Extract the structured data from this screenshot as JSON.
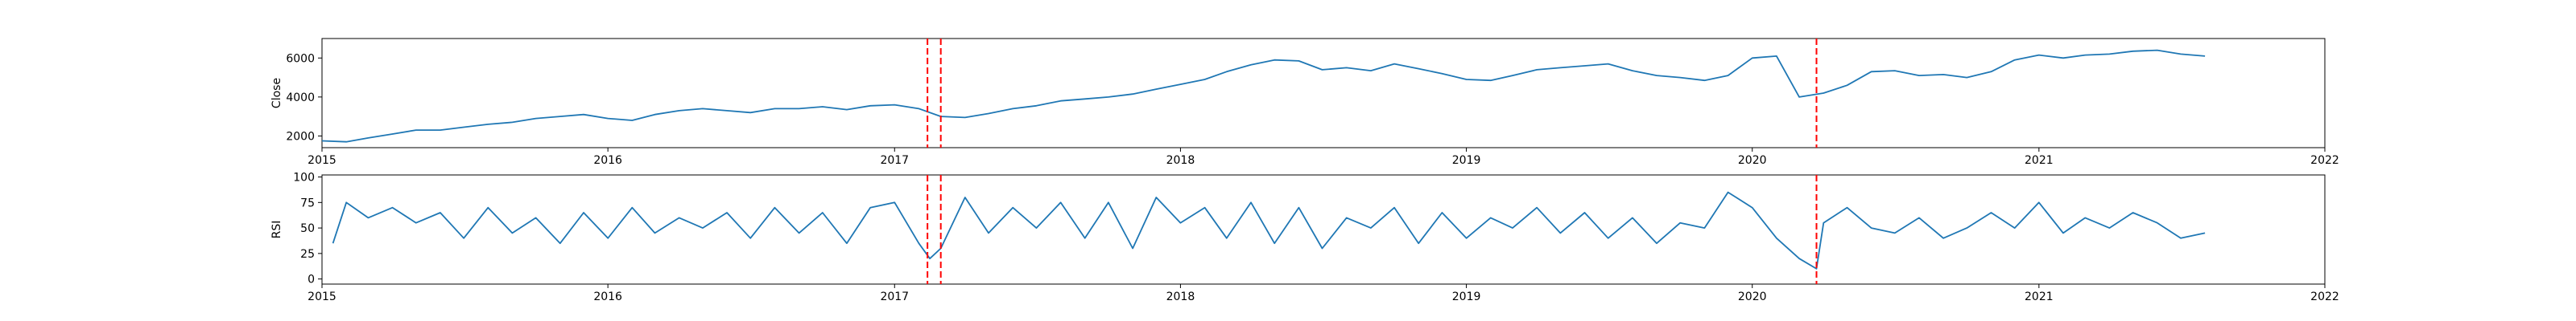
{
  "chart_data": [
    {
      "type": "line",
      "ylabel": "Close",
      "xlim": [
        "2015-01-01",
        "2022-01-01"
      ],
      "ylim": [
        1400,
        7000
      ],
      "x_ticks": [
        "2015",
        "2016",
        "2017",
        "2018",
        "2019",
        "2020",
        "2021",
        "2022"
      ],
      "y_ticks": [
        2000,
        4000,
        6000
      ],
      "line_color": "#1f77b4",
      "series": [
        {
          "x": [
            "2015-01-01",
            "2015-02-01",
            "2015-03-01",
            "2015-04-01",
            "2015-05-01",
            "2015-06-01",
            "2015-07-01",
            "2015-08-01",
            "2015-09-01",
            "2015-10-01",
            "2015-11-01",
            "2015-12-01",
            "2016-01-01",
            "2016-02-01",
            "2016-03-01",
            "2016-04-01",
            "2016-05-01",
            "2016-06-01",
            "2016-07-01",
            "2016-08-01",
            "2016-09-01",
            "2016-10-01",
            "2016-11-01",
            "2016-12-01",
            "2017-01-01",
            "2017-02-01",
            "2017-03-01",
            "2017-04-01",
            "2017-05-01",
            "2017-06-01",
            "2017-07-01",
            "2017-08-01",
            "2017-09-01",
            "2017-10-01",
            "2017-11-01",
            "2017-12-01",
            "2018-01-01",
            "2018-02-01",
            "2018-03-01",
            "2018-04-01",
            "2018-05-01",
            "2018-06-01",
            "2018-07-01",
            "2018-08-01",
            "2018-09-01",
            "2018-10-01",
            "2018-11-01",
            "2018-12-01",
            "2019-01-01",
            "2019-02-01",
            "2019-03-01",
            "2019-04-01",
            "2019-05-01",
            "2019-06-01",
            "2019-07-01",
            "2019-08-01",
            "2019-09-01",
            "2019-10-01",
            "2019-11-01",
            "2019-12-01",
            "2020-01-01",
            "2020-02-01",
            "2020-03-01",
            "2020-04-01",
            "2020-05-01",
            "2020-06-01",
            "2020-07-01",
            "2020-08-01",
            "2020-09-01",
            "2020-10-01",
            "2020-11-01",
            "2020-12-01",
            "2021-01-01",
            "2021-02-01",
            "2021-03-01",
            "2021-04-01",
            "2021-05-01",
            "2021-06-01",
            "2021-07-01",
            "2021-08-01"
          ],
          "values": [
            1750,
            1700,
            1900,
            2100,
            2300,
            2300,
            2450,
            2600,
            2700,
            2900,
            3000,
            3100,
            2900,
            2800,
            3100,
            3300,
            3400,
            3300,
            3200,
            3400,
            3400,
            3500,
            3350,
            3550,
            3600,
            3400,
            3000,
            2950,
            3150,
            3400,
            3550,
            3800,
            3900,
            4000,
            4150,
            4400,
            4650,
            4900,
            5300,
            5650,
            5900,
            5850,
            5400,
            5500,
            5350,
            5700,
            5450,
            5200,
            4900,
            4850,
            5100,
            5400,
            5500,
            5600,
            5700,
            5350,
            5100,
            5000,
            4850,
            5100,
            6000,
            6100,
            4000,
            4200,
            4600,
            5300,
            5350,
            5100,
            5150,
            5000,
            5300,
            5900,
            6150,
            6000,
            6150,
            6200,
            6350,
            6400,
            6200,
            6100
          ]
        }
      ],
      "vlines": [
        "2017-02-12",
        "2017-03-01",
        "2020-03-23"
      ],
      "vline_color": "#ff0000"
    },
    {
      "type": "line",
      "ylabel": "RSI",
      "xlim": [
        "2015-01-01",
        "2022-01-01"
      ],
      "ylim": [
        -5,
        102
      ],
      "x_ticks": [
        "2015",
        "2016",
        "2017",
        "2018",
        "2019",
        "2020",
        "2021",
        "2022"
      ],
      "y_ticks": [
        0,
        25,
        50,
        75,
        100
      ],
      "line_color": "#1f77b4",
      "series": [
        {
          "x": [
            "2015-01-15",
            "2015-02-01",
            "2015-03-01",
            "2015-04-01",
            "2015-05-01",
            "2015-06-01",
            "2015-07-01",
            "2015-08-01",
            "2015-09-01",
            "2015-10-01",
            "2015-11-01",
            "2015-12-01",
            "2016-01-01",
            "2016-02-01",
            "2016-03-01",
            "2016-04-01",
            "2016-05-01",
            "2016-06-01",
            "2016-07-01",
            "2016-08-01",
            "2016-09-01",
            "2016-10-01",
            "2016-11-01",
            "2016-12-01",
            "2017-01-01",
            "2017-02-01",
            "2017-02-15",
            "2017-03-01",
            "2017-04-01",
            "2017-05-01",
            "2017-06-01",
            "2017-07-01",
            "2017-08-01",
            "2017-09-01",
            "2017-10-01",
            "2017-11-01",
            "2017-12-01",
            "2018-01-01",
            "2018-02-01",
            "2018-03-01",
            "2018-04-01",
            "2018-05-01",
            "2018-06-01",
            "2018-07-01",
            "2018-08-01",
            "2018-09-01",
            "2018-10-01",
            "2018-11-01",
            "2018-12-01",
            "2019-01-01",
            "2019-02-01",
            "2019-03-01",
            "2019-04-01",
            "2019-05-01",
            "2019-06-01",
            "2019-07-01",
            "2019-08-01",
            "2019-09-01",
            "2019-10-01",
            "2019-11-01",
            "2019-12-01",
            "2020-01-01",
            "2020-02-01",
            "2020-03-01",
            "2020-03-23",
            "2020-04-01",
            "2020-05-01",
            "2020-06-01",
            "2020-07-01",
            "2020-08-01",
            "2020-09-01",
            "2020-10-01",
            "2020-11-01",
            "2020-12-01",
            "2021-01-01",
            "2021-02-01",
            "2021-03-01",
            "2021-04-01",
            "2021-05-01",
            "2021-06-01",
            "2021-07-01",
            "2021-08-01"
          ],
          "values": [
            35,
            75,
            60,
            70,
            55,
            65,
            40,
            70,
            45,
            60,
            35,
            65,
            40,
            70,
            45,
            60,
            50,
            65,
            40,
            70,
            45,
            65,
            35,
            70,
            75,
            35,
            20,
            30,
            80,
            45,
            70,
            50,
            75,
            40,
            75,
            30,
            80,
            55,
            70,
            40,
            75,
            35,
            70,
            30,
            60,
            50,
            70,
            35,
            65,
            40,
            60,
            50,
            70,
            45,
            65,
            40,
            60,
            35,
            55,
            50,
            85,
            70,
            40,
            20,
            10,
            55,
            70,
            50,
            45,
            60,
            40,
            50,
            65,
            50,
            75,
            45,
            60,
            50,
            65,
            55,
            40,
            45
          ]
        }
      ],
      "vlines": [
        "2017-02-12",
        "2017-03-01",
        "2020-03-23"
      ],
      "vline_color": "#ff0000"
    }
  ]
}
